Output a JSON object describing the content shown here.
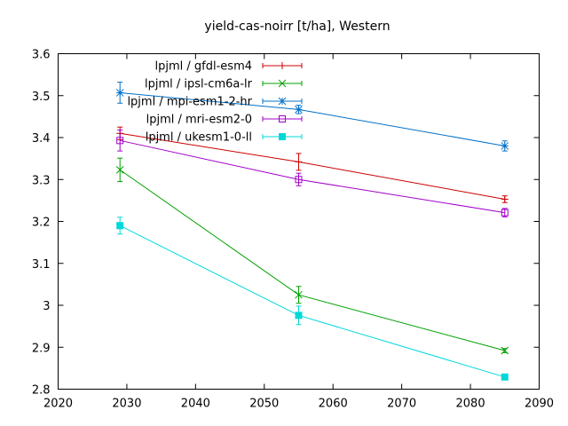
{
  "chart_data": {
    "type": "line",
    "title": "yield-cas-noirr [t/ha], Western",
    "xlabel": "",
    "ylabel": "",
    "xlim": [
      2020,
      2090
    ],
    "ylim": [
      2.8,
      3.6
    ],
    "xticks": [
      2020,
      2030,
      2040,
      2050,
      2060,
      2070,
      2080,
      2090
    ],
    "yticks": [
      2.8,
      2.9,
      3.0,
      3.1,
      3.2,
      3.3,
      3.4,
      3.5,
      3.6
    ],
    "ytick_labels": [
      "2.8",
      "2.9",
      "3",
      "3.1",
      "3.2",
      "3.3",
      "3.4",
      "3.5",
      "3.6"
    ],
    "grid": false,
    "legend_position": "top-left",
    "series": [
      {
        "name": "lpjml / gfdl-esm4",
        "color": "#cc0000",
        "marker": "plus",
        "x": [
          2029,
          2055,
          2085
        ],
        "y": [
          3.41,
          3.342,
          3.253
        ],
        "err": [
          0.015,
          0.02,
          0.008
        ]
      },
      {
        "name": "lpjml / ipsl-cm6a-lr",
        "color": "#00a000",
        "marker": "cross",
        "x": [
          2029,
          2055,
          2085
        ],
        "y": [
          3.323,
          3.025,
          2.892
        ],
        "err": [
          0.028,
          0.02,
          0.005
        ]
      },
      {
        "name": "lpjml / mpi-esm1-2-hr",
        "color": "#0070c8",
        "marker": "star",
        "x": [
          2029,
          2055,
          2085
        ],
        "y": [
          3.507,
          3.467,
          3.38
        ],
        "err": [
          0.025,
          0.01,
          0.012
        ]
      },
      {
        "name": "lpjml / mri-esm2-0",
        "color": "#a000c8",
        "marker": "open-square",
        "x": [
          2029,
          2055,
          2085
        ],
        "y": [
          3.393,
          3.3,
          3.221
        ],
        "err": [
          0.025,
          0.015,
          0.01
        ]
      },
      {
        "name": "lpjml / ukesm1-0-ll",
        "color": "#00d8d8",
        "marker": "filled-square",
        "x": [
          2029,
          2055,
          2085
        ],
        "y": [
          3.19,
          2.976,
          2.829
        ],
        "err": [
          0.02,
          0.022,
          0.005
        ]
      }
    ]
  }
}
